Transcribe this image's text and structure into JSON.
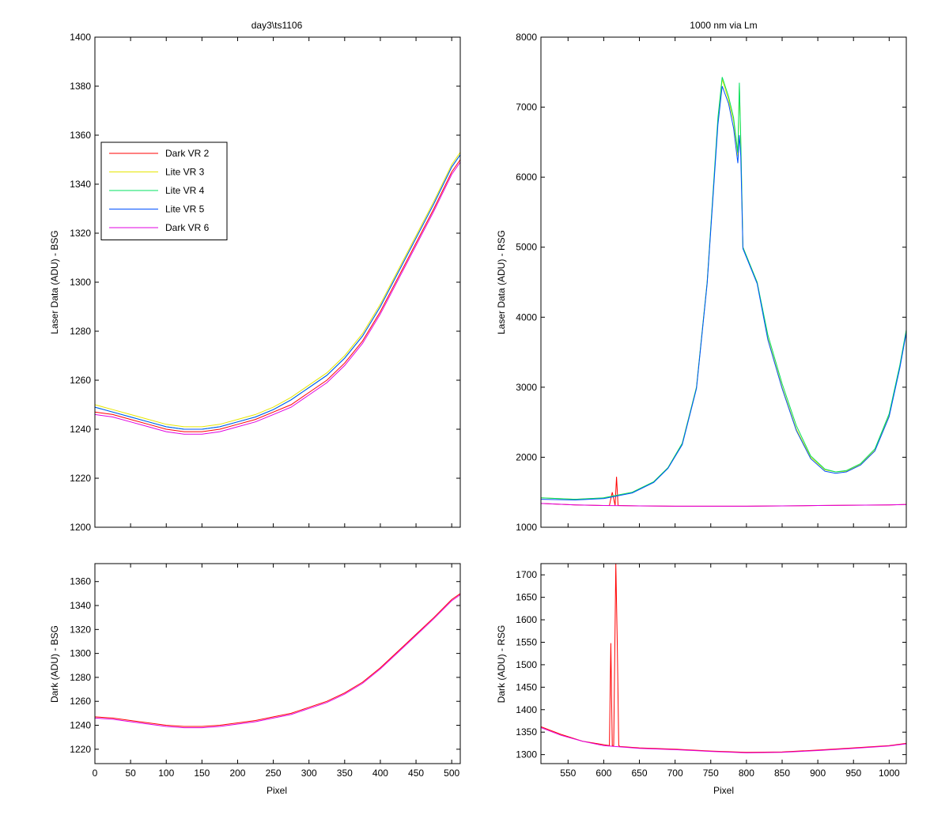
{
  "chart_data": [
    {
      "type": "line",
      "title": "day3\\ts1106",
      "xlabel": "",
      "ylabel": "Laser Data (ADU) - BSG",
      "xlim": [
        0,
        512
      ],
      "ylim": [
        1200,
        1400
      ],
      "yticks": [
        1200,
        1220,
        1240,
        1260,
        1280,
        1300,
        1320,
        1340,
        1360,
        1380,
        1400
      ],
      "xticks": [
        0,
        50,
        100,
        150,
        200,
        250,
        300,
        350,
        400,
        450,
        500
      ],
      "show_xtick_labels": false,
      "legend_position": "upper-left",
      "series": [
        {
          "name": "Dark VR 2",
          "color": "#ff0000",
          "x": [
            0,
            25,
            50,
            75,
            100,
            125,
            150,
            175,
            200,
            225,
            250,
            275,
            300,
            325,
            350,
            375,
            400,
            425,
            450,
            475,
            500,
            512
          ],
          "values": [
            1247,
            1246,
            1244,
            1242,
            1240,
            1239,
            1239,
            1240,
            1242,
            1244,
            1247,
            1250,
            1255,
            1260,
            1267,
            1276,
            1288,
            1302,
            1316,
            1330,
            1345,
            1350
          ]
        },
        {
          "name": "Lite VR 3",
          "color": "#e6e600",
          "x": [
            0,
            25,
            50,
            75,
            100,
            125,
            150,
            175,
            200,
            225,
            250,
            275,
            300,
            325,
            350,
            375,
            400,
            425,
            450,
            475,
            500,
            512
          ],
          "values": [
            1250,
            1248,
            1246,
            1244,
            1242,
            1241,
            1241,
            1242,
            1244,
            1246,
            1249,
            1253,
            1258,
            1263,
            1270,
            1279,
            1291,
            1305,
            1319,
            1333,
            1348,
            1353
          ]
        },
        {
          "name": "Lite VR 4",
          "color": "#00e060",
          "x": [
            0,
            25,
            50,
            75,
            100,
            125,
            150,
            175,
            200,
            225,
            250,
            275,
            300,
            325,
            350,
            375,
            400,
            425,
            450,
            475,
            500,
            512
          ],
          "values": [
            1249,
            1247,
            1245,
            1243,
            1241,
            1240,
            1240,
            1241,
            1243,
            1245,
            1248,
            1252,
            1257,
            1262,
            1269,
            1278,
            1290,
            1304,
            1318,
            1332,
            1347,
            1352
          ]
        },
        {
          "name": "Lite VR 5",
          "color": "#0050ff",
          "x": [
            0,
            25,
            50,
            75,
            100,
            125,
            150,
            175,
            200,
            225,
            250,
            275,
            300,
            325,
            350,
            375,
            400,
            425,
            450,
            475,
            500,
            512
          ],
          "values": [
            1249,
            1247,
            1245,
            1243,
            1241,
            1240,
            1240,
            1241,
            1243,
            1245,
            1248,
            1252,
            1257,
            1262,
            1269,
            1278,
            1290,
            1304,
            1318,
            1332,
            1347,
            1352
          ]
        },
        {
          "name": "Dark VR 6",
          "color": "#e000e0",
          "x": [
            0,
            25,
            50,
            75,
            100,
            125,
            150,
            175,
            200,
            225,
            250,
            275,
            300,
            325,
            350,
            375,
            400,
            425,
            450,
            475,
            500,
            512
          ],
          "values": [
            1246,
            1245,
            1243,
            1241,
            1239,
            1238,
            1238,
            1239,
            1241,
            1243,
            1246,
            1249,
            1254,
            1259,
            1266,
            1275,
            1287,
            1301,
            1315,
            1329,
            1344,
            1349
          ]
        }
      ]
    },
    {
      "type": "line",
      "title": "1000 nm via Lm",
      "xlabel": "",
      "ylabel": "Laser Data (ADU) - RSG",
      "xlim": [
        512,
        1024
      ],
      "ylim": [
        1000,
        8000
      ],
      "yticks": [
        1000,
        2000,
        3000,
        4000,
        5000,
        6000,
        7000,
        8000
      ],
      "xticks": [
        550,
        600,
        650,
        700,
        750,
        800,
        850,
        900,
        950,
        1000
      ],
      "show_xtick_labels": false,
      "series": [
        {
          "name": "Dark VR 2",
          "color": "#ff0000",
          "x": [
            512,
            560,
            600,
            608,
            612,
            616,
            618,
            620,
            622,
            650,
            700,
            750,
            800,
            850,
            900,
            950,
            1000,
            1024
          ],
          "values": [
            1340,
            1320,
            1310,
            1310,
            1500,
            1310,
            1720,
            1310,
            1310,
            1305,
            1300,
            1300,
            1300,
            1305,
            1310,
            1315,
            1320,
            1325
          ]
        },
        {
          "name": "Lite VR 3",
          "color": "#e6e600",
          "x": [
            512,
            560,
            600,
            640,
            670,
            690,
            710,
            730,
            745,
            760,
            766,
            775,
            782,
            788,
            790,
            792,
            795,
            815,
            830,
            850,
            870,
            890,
            910,
            925,
            940,
            960,
            980,
            1000,
            1015,
            1024
          ],
          "values": [
            1420,
            1400,
            1420,
            1500,
            1650,
            1850,
            2200,
            3000,
            4500,
            6800,
            7400,
            7100,
            6800,
            6300,
            7300,
            6500,
            5000,
            4500,
            3700,
            3000,
            2400,
            2000,
            1820,
            1790,
            1800,
            1900,
            2100,
            2600,
            3300,
            3800
          ]
        },
        {
          "name": "Lite VR 4",
          "color": "#00e060",
          "x": [
            512,
            560,
            600,
            640,
            670,
            690,
            710,
            730,
            745,
            760,
            766,
            775,
            782,
            788,
            790,
            792,
            795,
            815,
            830,
            850,
            870,
            890,
            910,
            925,
            940,
            960,
            980,
            1000,
            1015,
            1024
          ],
          "values": [
            1420,
            1400,
            1420,
            1500,
            1650,
            1850,
            2200,
            3000,
            4500,
            6850,
            7430,
            7150,
            6850,
            6350,
            7350,
            6550,
            5000,
            4500,
            3750,
            3050,
            2450,
            2020,
            1830,
            1790,
            1810,
            1910,
            2120,
            2620,
            3320,
            3820
          ]
        },
        {
          "name": "Lite VR 5",
          "color": "#0050ff",
          "x": [
            512,
            560,
            600,
            640,
            670,
            690,
            710,
            730,
            745,
            760,
            766,
            775,
            782,
            788,
            790,
            792,
            795,
            815,
            830,
            850,
            870,
            890,
            910,
            925,
            940,
            960,
            980,
            1000,
            1015,
            1024
          ],
          "values": [
            1400,
            1390,
            1410,
            1490,
            1640,
            1840,
            2180,
            2980,
            4480,
            6750,
            7300,
            7050,
            6700,
            6200,
            6600,
            6300,
            4980,
            4480,
            3680,
            2980,
            2380,
            1980,
            1800,
            1770,
            1790,
            1890,
            2090,
            2580,
            3280,
            3780
          ]
        },
        {
          "name": "Dark VR 6",
          "color": "#e000e0",
          "x": [
            512,
            560,
            600,
            650,
            700,
            750,
            800,
            850,
            900,
            950,
            1000,
            1024
          ],
          "values": [
            1340,
            1320,
            1310,
            1305,
            1300,
            1300,
            1300,
            1305,
            1310,
            1315,
            1320,
            1325
          ]
        }
      ]
    },
    {
      "type": "line",
      "title": "",
      "xlabel": "Pixel",
      "ylabel": "Dark (ADU) - BSG",
      "xlim": [
        0,
        512
      ],
      "ylim": [
        1208,
        1375
      ],
      "yticks": [
        1220,
        1240,
        1260,
        1280,
        1300,
        1320,
        1340,
        1360
      ],
      "xticks": [
        0,
        50,
        100,
        150,
        200,
        250,
        300,
        350,
        400,
        450,
        500
      ],
      "series": [
        {
          "name": "Dark VR 2",
          "color": "#ff0000",
          "x": [
            0,
            25,
            50,
            75,
            100,
            125,
            150,
            175,
            200,
            225,
            250,
            275,
            300,
            325,
            350,
            375,
            400,
            425,
            450,
            475,
            500,
            512
          ],
          "values": [
            1247,
            1246,
            1244,
            1242,
            1240,
            1239,
            1239,
            1240,
            1242,
            1244,
            1247,
            1250,
            1255,
            1260,
            1267,
            1276,
            1288,
            1302,
            1316,
            1330,
            1345,
            1350
          ]
        },
        {
          "name": "Dark VR 6",
          "color": "#e000e0",
          "x": [
            0,
            25,
            50,
            75,
            100,
            125,
            150,
            175,
            200,
            225,
            250,
            275,
            300,
            325,
            350,
            375,
            400,
            425,
            450,
            475,
            500,
            512
          ],
          "values": [
            1246,
            1245,
            1243,
            1241,
            1239,
            1238,
            1238,
            1239,
            1241,
            1243,
            1246,
            1249,
            1254,
            1259,
            1266,
            1275,
            1287,
            1301,
            1315,
            1329,
            1344,
            1349
          ]
        }
      ]
    },
    {
      "type": "line",
      "title": "",
      "xlabel": "Pixel",
      "ylabel": "Dark (ADU) - RSG",
      "xlim": [
        512,
        1024
      ],
      "ylim": [
        1280,
        1725
      ],
      "yticks": [
        1300,
        1350,
        1400,
        1450,
        1500,
        1550,
        1600,
        1650,
        1700
      ],
      "xticks": [
        550,
        600,
        650,
        700,
        750,
        800,
        850,
        900,
        950,
        1000
      ],
      "series": [
        {
          "name": "Dark VR 2",
          "color": "#ff0000",
          "x": [
            512,
            540,
            570,
            600,
            608,
            610,
            612,
            614,
            617,
            619,
            621,
            623,
            650,
            700,
            750,
            800,
            850,
            900,
            950,
            1000,
            1024
          ],
          "values": [
            1362,
            1345,
            1330,
            1322,
            1320,
            1548,
            1320,
            1320,
            1725,
            1540,
            1320,
            1318,
            1315,
            1312,
            1308,
            1305,
            1306,
            1310,
            1315,
            1320,
            1325
          ]
        },
        {
          "name": "Dark VR 6",
          "color": "#e000e0",
          "x": [
            512,
            540,
            570,
            600,
            650,
            700,
            750,
            800,
            850,
            900,
            950,
            1000,
            1024
          ],
          "values": [
            1360,
            1343,
            1330,
            1320,
            1314,
            1311,
            1307,
            1304,
            1305,
            1309,
            1314,
            1319,
            1324
          ]
        }
      ]
    }
  ]
}
